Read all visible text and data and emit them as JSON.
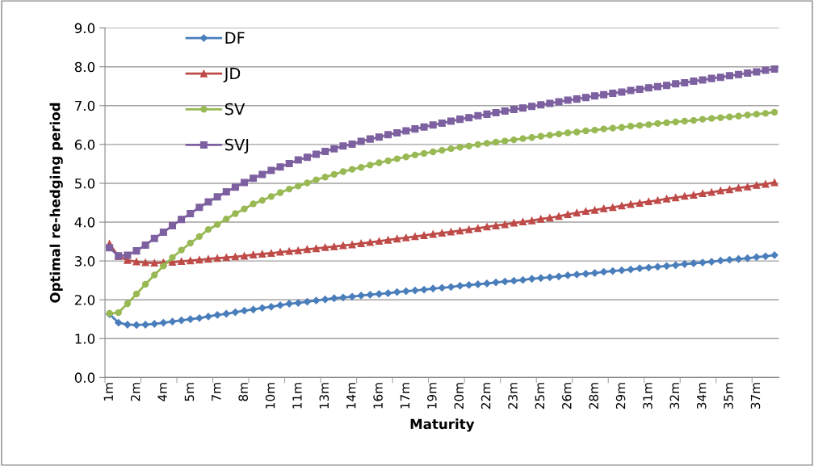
{
  "chart_data": {
    "type": "line",
    "xlabel": "Maturity",
    "ylabel": "Optimal re-hedging period",
    "categories": [
      "1m",
      null,
      null,
      "2m",
      null,
      null,
      "4m",
      null,
      null,
      "5m",
      null,
      null,
      "7m",
      null,
      null,
      "8m",
      null,
      null,
      "10m",
      null,
      null,
      "11m",
      null,
      null,
      "13m",
      null,
      null,
      "14m",
      null,
      null,
      "16m",
      null,
      null,
      "17m",
      null,
      null,
      "19m",
      null,
      null,
      "20m",
      null,
      null,
      "22m",
      null,
      null,
      "23m",
      null,
      null,
      "25m",
      null,
      null,
      "26m",
      null,
      null,
      "28m",
      null,
      null,
      "29m",
      null,
      null,
      "31m",
      null,
      null,
      "32m",
      null,
      null,
      "34m",
      null,
      null,
      "35m",
      null,
      null,
      "37m",
      null,
      null
    ],
    "series": [
      {
        "name": "DF",
        "color": "#4a7ebb",
        "marker": "diamond",
        "values": [
          1.63,
          1.41,
          1.36,
          1.35,
          1.36,
          1.38,
          1.41,
          1.44,
          1.47,
          1.5,
          1.53,
          1.57,
          1.61,
          1.64,
          1.68,
          1.72,
          1.75,
          1.79,
          1.82,
          1.86,
          1.9,
          1.92,
          1.95,
          1.98,
          2.01,
          2.04,
          2.06,
          2.08,
          2.11,
          2.13,
          2.15,
          2.17,
          2.2,
          2.22,
          2.24,
          2.26,
          2.29,
          2.31,
          2.33,
          2.36,
          2.38,
          2.4,
          2.42,
          2.45,
          2.47,
          2.49,
          2.51,
          2.54,
          2.56,
          2.58,
          2.6,
          2.63,
          2.65,
          2.67,
          2.69,
          2.72,
          2.74,
          2.76,
          2.78,
          2.81,
          2.83,
          2.85,
          2.87,
          2.89,
          2.92,
          2.94,
          2.96,
          2.98,
          3.01,
          3.03,
          3.05,
          3.07,
          3.1,
          3.12,
          3.15
        ]
      },
      {
        "name": "JD",
        "color": "#be4b48",
        "marker": "triangle",
        "values": [
          3.44,
          3.12,
          3.02,
          2.98,
          2.96,
          2.95,
          2.96,
          2.97,
          2.99,
          3.01,
          3.03,
          3.05,
          3.07,
          3.09,
          3.11,
          3.13,
          3.16,
          3.18,
          3.2,
          3.23,
          3.25,
          3.27,
          3.3,
          3.32,
          3.35,
          3.37,
          3.4,
          3.42,
          3.45,
          3.48,
          3.51,
          3.54,
          3.57,
          3.6,
          3.63,
          3.66,
          3.69,
          3.72,
          3.75,
          3.78,
          3.81,
          3.84,
          3.88,
          3.91,
          3.94,
          3.98,
          4.01,
          4.04,
          4.08,
          4.11,
          4.15,
          4.2,
          4.24,
          4.28,
          4.31,
          4.35,
          4.38,
          4.42,
          4.46,
          4.49,
          4.53,
          4.56,
          4.6,
          4.63,
          4.67,
          4.7,
          4.74,
          4.77,
          4.81,
          4.84,
          4.88,
          4.91,
          4.95,
          4.98,
          5.02
        ]
      },
      {
        "name": "SV",
        "color": "#98b954",
        "marker": "circle",
        "values": [
          1.65,
          1.67,
          1.9,
          2.15,
          2.4,
          2.64,
          2.87,
          3.09,
          3.28,
          3.46,
          3.63,
          3.81,
          3.94,
          4.08,
          4.22,
          4.34,
          4.47,
          4.56,
          4.66,
          4.76,
          4.85,
          4.93,
          5.01,
          5.09,
          5.16,
          5.23,
          5.3,
          5.36,
          5.41,
          5.47,
          5.53,
          5.58,
          5.63,
          5.68,
          5.73,
          5.77,
          5.81,
          5.85,
          5.89,
          5.93,
          5.96,
          6.0,
          6.03,
          6.06,
          6.09,
          6.12,
          6.15,
          6.18,
          6.21,
          6.24,
          6.27,
          6.3,
          6.32,
          6.35,
          6.37,
          6.4,
          6.42,
          6.44,
          6.47,
          6.49,
          6.51,
          6.54,
          6.56,
          6.58,
          6.6,
          6.62,
          6.65,
          6.67,
          6.69,
          6.71,
          6.73,
          6.76,
          6.78,
          6.8,
          6.83
        ]
      },
      {
        "name": "SVJ",
        "color": "#7d60a0",
        "marker": "square",
        "values": [
          3.34,
          3.13,
          3.15,
          3.26,
          3.41,
          3.58,
          3.74,
          3.91,
          4.07,
          4.22,
          4.38,
          4.52,
          4.65,
          4.78,
          4.9,
          5.02,
          5.13,
          5.23,
          5.33,
          5.42,
          5.51,
          5.6,
          5.67,
          5.75,
          5.82,
          5.89,
          5.96,
          6.01,
          6.08,
          6.14,
          6.19,
          6.25,
          6.3,
          6.35,
          6.4,
          6.45,
          6.5,
          6.55,
          6.6,
          6.65,
          6.69,
          6.74,
          6.78,
          6.82,
          6.86,
          6.9,
          6.94,
          6.98,
          7.02,
          7.06,
          7.1,
          7.14,
          7.17,
          7.21,
          7.25,
          7.28,
          7.32,
          7.35,
          7.39,
          7.42,
          7.46,
          7.49,
          7.52,
          7.56,
          7.59,
          7.63,
          7.66,
          7.7,
          7.73,
          7.77,
          7.8,
          7.84,
          7.87,
          7.91,
          7.94
        ]
      }
    ],
    "ylim": [
      0,
      9
    ],
    "yticks": [
      {
        "value": 0,
        "label": "0.0"
      },
      {
        "value": 1,
        "label": "1.0"
      },
      {
        "value": 2,
        "label": "2.0"
      },
      {
        "value": 3,
        "label": "3.0"
      },
      {
        "value": 4,
        "label": "4.0"
      },
      {
        "value": 5,
        "label": "5.0"
      },
      {
        "value": 6,
        "label": "6.0"
      },
      {
        "value": 7,
        "label": "7.0"
      },
      {
        "value": 8,
        "label": "8.0"
      },
      {
        "value": 9,
        "label": "9.0"
      }
    ],
    "grid": "y",
    "legend": "top left",
    "line_style": "solid"
  }
}
